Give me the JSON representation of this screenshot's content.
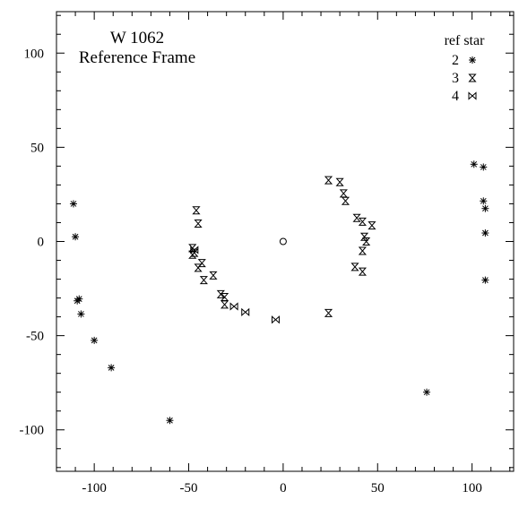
{
  "chart_data": {
    "type": "scatter",
    "title": "W 1062",
    "subtitle": "Reference Frame",
    "xlabel": "",
    "ylabel": "",
    "xlim": [
      -120,
      122
    ],
    "ylim": [
      -122,
      122
    ],
    "x_ticks": [
      -100,
      -50,
      0,
      50,
      100
    ],
    "y_ticks": [
      -100,
      -50,
      0,
      50,
      100
    ],
    "grid": false,
    "legend_placement": "top-right",
    "legend_title": "ref star",
    "center_marker": {
      "x": 0,
      "y": 0,
      "symbol": "circle"
    },
    "series": [
      {
        "name": "2",
        "symbol": "asterisk",
        "points": [
          [
            -111,
            20
          ],
          [
            -110,
            2.5
          ],
          [
            -109,
            -31.5
          ],
          [
            -108,
            -30.5
          ],
          [
            -107,
            -38.5
          ],
          [
            -100,
            -52.5
          ],
          [
            -91,
            -67
          ],
          [
            -60,
            -95
          ],
          [
            76,
            -80
          ],
          [
            101,
            41
          ],
          [
            106,
            39.5
          ],
          [
            106,
            21.5
          ],
          [
            107,
            17.5
          ],
          [
            107,
            4.5
          ],
          [
            107,
            -20.5
          ]
        ]
      },
      {
        "name": "3",
        "symbol": "hourglass",
        "points": [
          [
            -46,
            16.5
          ],
          [
            -45,
            9.5
          ],
          [
            -48,
            -3.5
          ],
          [
            -48,
            -7
          ],
          [
            -47,
            -6
          ],
          [
            -43,
            -11.5
          ],
          [
            -45,
            -14
          ],
          [
            -42,
            -20.5
          ],
          [
            -37,
            -18
          ],
          [
            -33,
            -28
          ],
          [
            -31,
            -29.5
          ],
          [
            -31,
            -33.5
          ],
          [
            24,
            -38
          ],
          [
            24,
            32.5
          ],
          [
            30,
            31.5
          ],
          [
            32,
            25.5
          ],
          [
            33,
            21.5
          ],
          [
            39,
            12.5
          ],
          [
            42,
            10.5
          ],
          [
            47,
            8.5
          ],
          [
            43,
            2.5
          ],
          [
            44,
            0
          ],
          [
            42,
            -5
          ],
          [
            38,
            -13.5
          ],
          [
            42,
            -16
          ]
        ]
      },
      {
        "name": "4",
        "symbol": "bowtie",
        "points": [
          [
            -47,
            -4.5
          ],
          [
            -26,
            -34.5
          ],
          [
            -20,
            -37.5
          ],
          [
            -4,
            -41.5
          ]
        ]
      }
    ]
  }
}
